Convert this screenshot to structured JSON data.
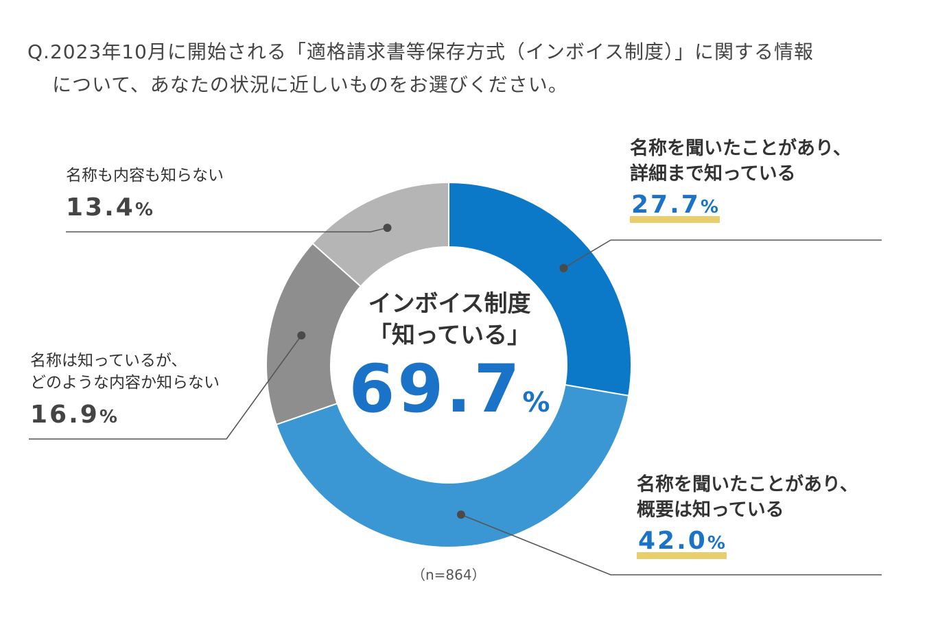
{
  "question": {
    "line1": "Q.2023年10月に開始される「適格請求書等保存方式（インボイス制度）」に関する情報",
    "line2": "について、あなたの状況に近しいものをお選びください。"
  },
  "center": {
    "title_line1": "インボイス制度",
    "title_line2": "「知っている」",
    "value": "69.7",
    "unit": "%"
  },
  "sample_size": "（n=864）",
  "chart_data": {
    "type": "pie",
    "donut": true,
    "categories": [
      "名称を聞いたことがあり、詳細まで知っている",
      "名称を聞いたことがあり、概要は知っている",
      "名称は知っているが、どのような内容か知らない",
      "名称も内容も知らない"
    ],
    "values": [
      27.7,
      42.0,
      16.9,
      13.4
    ],
    "colors": [
      "#0b78c8",
      "#3a97d4",
      "#8e8e8e",
      "#b5b5b5"
    ],
    "start": "top, clockwise",
    "labels": [
      {
        "line1": "名称を聞いたことがあり、",
        "line2": "詳細まで知っている",
        "value": "27.7",
        "unit": "%"
      },
      {
        "line1": "名称を聞いたことがあり、",
        "line2": "概要は知っている",
        "value": "42.0",
        "unit": "%"
      },
      {
        "line1": "名称は知っているが、",
        "line2": "どのような内容か知らない",
        "value": "16.9",
        "unit": "%"
      },
      {
        "line1": "名称も内容も知らない",
        "line2": "",
        "value": "13.4",
        "unit": "%"
      }
    ]
  }
}
